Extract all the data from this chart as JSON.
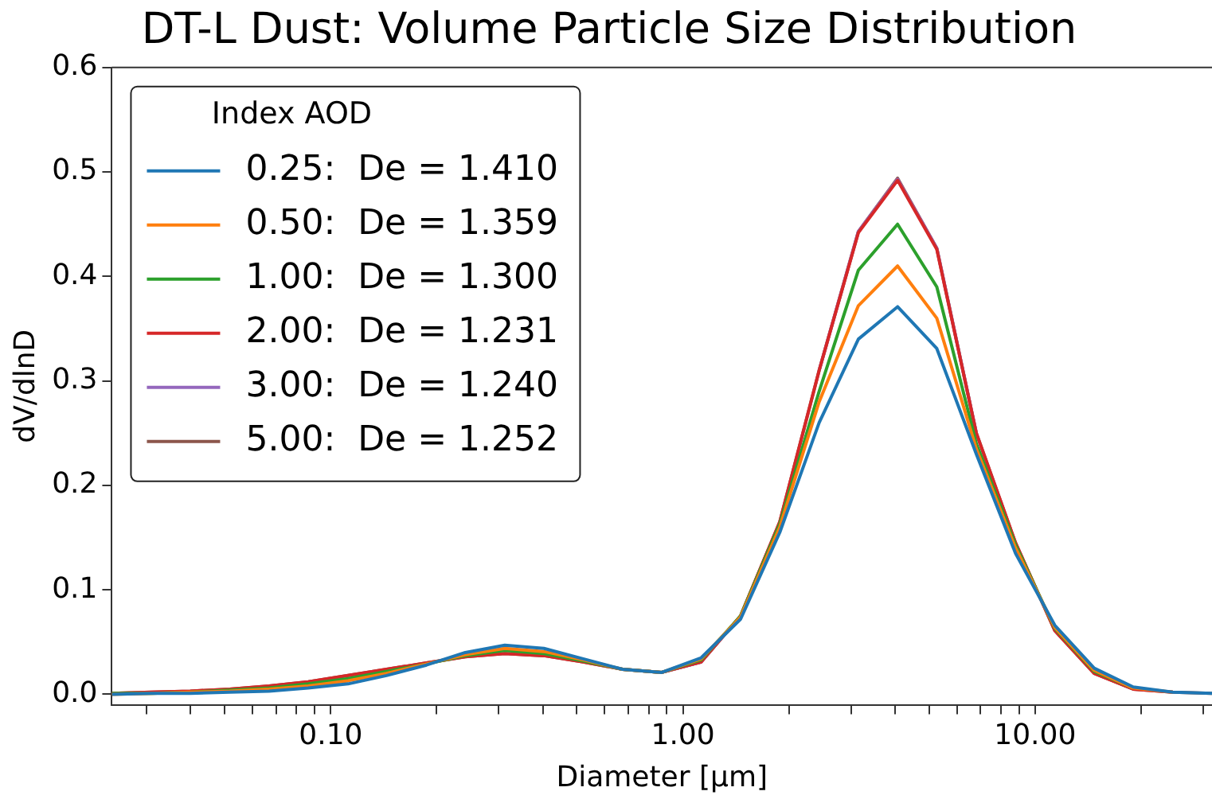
{
  "chart_data": {
    "type": "line",
    "title": "DT-L Dust: Volume Particle Size Distribution",
    "xlabel": "Diameter [μm]",
    "ylabel": "dV/dlnD",
    "legend_title": "Index AOD",
    "legend": "top left",
    "grid": false,
    "log": "x",
    "marker": "none",
    "line_style": "solid",
    "x": [
      0.0239,
      0.0309,
      0.0399,
      0.0516,
      0.0668,
      0.0863,
      0.112,
      0.144,
      0.187,
      0.241,
      0.312,
      0.403,
      0.521,
      0.674,
      0.871,
      1.127,
      1.458,
      1.884,
      2.437,
      3.15,
      4.07,
      5.26,
      6.81,
      8.8,
      11.38,
      14.72,
      19.0,
      24.6,
      31.8
    ],
    "xlim": [
      0.0239,
      31.8
    ],
    "xticks": [
      {
        "value": 0.03,
        "label": null
      },
      {
        "value": 0.04,
        "label": null
      },
      {
        "value": 0.05,
        "label": null
      },
      {
        "value": 0.06,
        "label": null
      },
      {
        "value": 0.07,
        "label": null
      },
      {
        "value": 0.08,
        "label": null
      },
      {
        "value": 0.09,
        "label": null
      },
      {
        "value": 0.1,
        "label": "0.10"
      },
      {
        "value": 0.2,
        "label": null
      },
      {
        "value": 0.3,
        "label": null
      },
      {
        "value": 0.4,
        "label": null
      },
      {
        "value": 0.5,
        "label": null
      },
      {
        "value": 0.6,
        "label": null
      },
      {
        "value": 0.7,
        "label": null
      },
      {
        "value": 0.8,
        "label": null
      },
      {
        "value": 0.9,
        "label": null
      },
      {
        "value": 1,
        "label": "1.00"
      },
      {
        "value": 2,
        "label": null
      },
      {
        "value": 3,
        "label": null
      },
      {
        "value": 4,
        "label": null
      },
      {
        "value": 5,
        "label": null
      },
      {
        "value": 6,
        "label": null
      },
      {
        "value": 7,
        "label": null
      },
      {
        "value": 8,
        "label": null
      },
      {
        "value": 9,
        "label": null
      },
      {
        "value": 10,
        "label": "10.00"
      },
      {
        "value": 20,
        "label": null
      },
      {
        "value": 30,
        "label": null
      }
    ],
    "ylim": [
      -0.01,
      0.6
    ],
    "yticks": [
      {
        "value": 0,
        "label": "0.0"
      },
      0.1,
      0.2,
      0.3,
      0.4,
      0.5,
      0.6
    ],
    "series": [
      {
        "name": "0.25:  De = 1.410",
        "color": "#1f77b4",
        "values": [
          0,
          0.001,
          0.001,
          0.002,
          0.003,
          0.006,
          0.01,
          0.018,
          0.028,
          0.04,
          0.047,
          0.044,
          0.034,
          0.024,
          0.021,
          0.035,
          0.072,
          0.155,
          0.26,
          0.34,
          0.371,
          0.331,
          0.23,
          0.135,
          0.066,
          0.025,
          0.007,
          0.002,
          0.001
        ]
      },
      {
        "name": "0.50:  De = 1.359",
        "color": "#ff7f0e",
        "values": [
          0,
          0.001,
          0.002,
          0.003,
          0.005,
          0.008,
          0.013,
          0.02,
          0.029,
          0.038,
          0.044,
          0.041,
          0.033,
          0.024,
          0.021,
          0.034,
          0.074,
          0.16,
          0.28,
          0.372,
          0.41,
          0.36,
          0.235,
          0.14,
          0.064,
          0.023,
          0.006,
          0.002,
          null
        ]
      },
      {
        "name": "1.00:  De = 1.300",
        "color": "#2ca02c",
        "values": [
          0.001,
          0.001,
          0.002,
          0.004,
          0.006,
          0.01,
          0.015,
          0.022,
          0.029,
          0.037,
          0.042,
          0.039,
          0.032,
          0.024,
          0.021,
          0.033,
          0.075,
          0.163,
          0.29,
          0.406,
          0.45,
          0.39,
          0.24,
          0.143,
          0.063,
          0.022,
          0.006,
          null,
          null
        ]
      },
      {
        "name": "2.00:  De = 1.231",
        "color": "#d62728",
        "values": [
          0.001,
          0.002,
          0.003,
          0.005,
          0.008,
          0.012,
          0.018,
          0.024,
          0.03,
          0.036,
          0.039,
          0.037,
          0.031,
          0.024,
          0.021,
          0.031,
          0.075,
          0.165,
          0.31,
          0.442,
          0.492,
          0.426,
          0.25,
          0.145,
          0.061,
          0.02,
          0.005,
          0.002,
          null
        ]
      },
      {
        "name": "3.00:  De = 1.240",
        "color": "#9467bd",
        "values": [
          null,
          null,
          null,
          null,
          null,
          null,
          null,
          null,
          null,
          null,
          null,
          null,
          null,
          null,
          0.021,
          0.031,
          0.075,
          null,
          0.31,
          0.443,
          0.493,
          0.427,
          0.25,
          null,
          null,
          null,
          null,
          null,
          null
        ]
      },
      {
        "name": "5.00:  De = 1.252",
        "color": "#8c564b",
        "values": [
          0.001,
          0.002,
          0.003,
          0.005,
          0.008,
          0.012,
          0.018,
          0.024,
          0.03,
          0.036,
          0.039,
          0.037,
          0.031,
          0.024,
          0.021,
          0.031,
          0.075,
          0.165,
          0.31,
          0.443,
          0.494,
          0.427,
          0.25,
          0.145,
          0.061,
          0.02,
          0.005,
          0.002,
          0.001
        ]
      }
    ]
  }
}
